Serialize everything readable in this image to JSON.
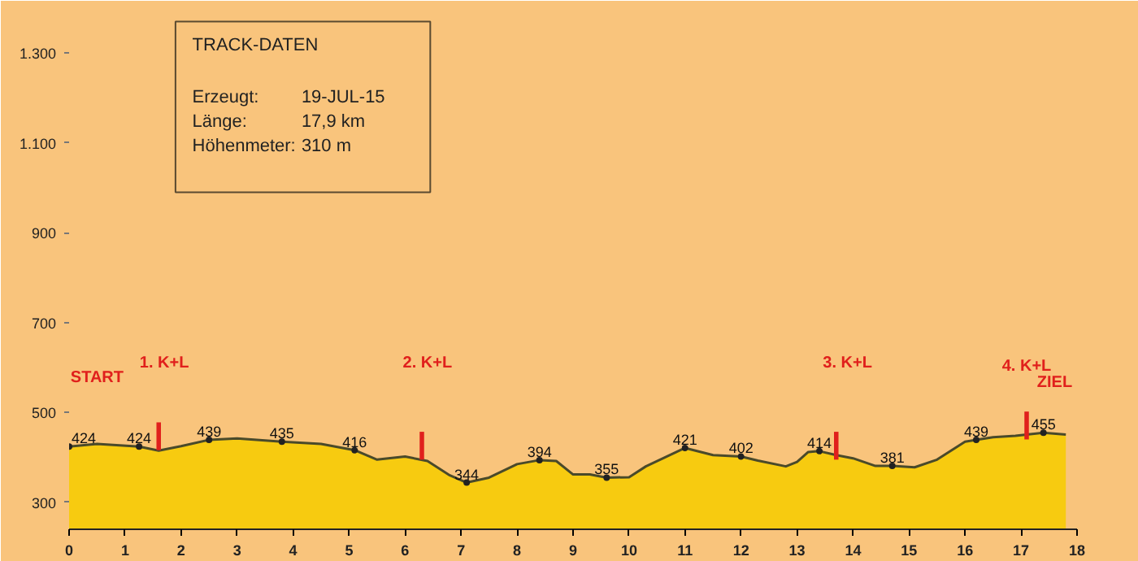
{
  "chart_data": {
    "type": "area",
    "x": [
      0,
      0.5,
      1.25,
      1.6,
      2,
      2.5,
      3,
      3.8,
      4.5,
      5.1,
      5.5,
      6,
      6.4,
      6.8,
      7.1,
      7.5,
      8,
      8.4,
      8.7,
      9,
      9.3,
      9.6,
      10,
      10.3,
      11,
      11.5,
      12,
      12.3,
      12.8,
      13,
      13.2,
      13.4,
      13.7,
      14,
      14.4,
      14.7,
      15.1,
      15.5,
      16,
      16.2,
      16.5,
      16.9,
      17.2,
      17.4,
      17.8
    ],
    "series": [
      {
        "color": "#f7cb10",
        "values": [
          424,
          430,
          424,
          415,
          425,
          439,
          442,
          435,
          430,
          416,
          395,
          402,
          392,
          360,
          344,
          355,
          385,
          394,
          392,
          362,
          362,
          355,
          356,
          380,
          421,
          405,
          402,
          393,
          380,
          390,
          412,
          414,
          405,
          398,
          381,
          381,
          378,
          395,
          435,
          439,
          445,
          448,
          452,
          455,
          451
        ],
        "value_labels": [
          "424",
          null,
          "424",
          null,
          null,
          "439",
          null,
          "435",
          null,
          "416",
          null,
          null,
          null,
          null,
          "344",
          null,
          null,
          "394",
          null,
          null,
          null,
          "355",
          null,
          null,
          "421",
          null,
          "402",
          null,
          null,
          null,
          null,
          "414",
          null,
          null,
          null,
          "381",
          null,
          null,
          null,
          "439",
          null,
          null,
          null,
          "455",
          null
        ]
      },
      {
        "type": "bar",
        "color": "#e0201c",
        "x": [
          1.6,
          6.3,
          13.7,
          17.1
        ],
        "base": [
          416,
          395,
          395,
          440
        ],
        "values": [
          62,
          62,
          62,
          62
        ]
      }
    ],
    "xlim": [
      0,
      18
    ],
    "xticks": [
      0,
      1,
      2,
      3,
      4,
      5,
      6,
      7,
      8,
      9,
      10,
      11,
      12,
      13,
      14,
      15,
      16,
      17,
      18
    ],
    "ylim": [
      240,
      1380
    ],
    "yticks": [
      300,
      500,
      700,
      900,
      {
        "value": 1100,
        "label": "1.100"
      },
      {
        "value": 1300,
        "label": "1.300"
      }
    ],
    "grid": false,
    "annotations": [
      "TRACK-DATEN",
      "Erzeugt:",
      "19-JUL-15",
      "Länge:",
      "17,9 km",
      "Höhenmeter:",
      "310 m",
      "START",
      "1. K+L",
      "2. K+L",
      "3. K+L",
      "4. K+L",
      "ZIEL"
    ]
  }
}
